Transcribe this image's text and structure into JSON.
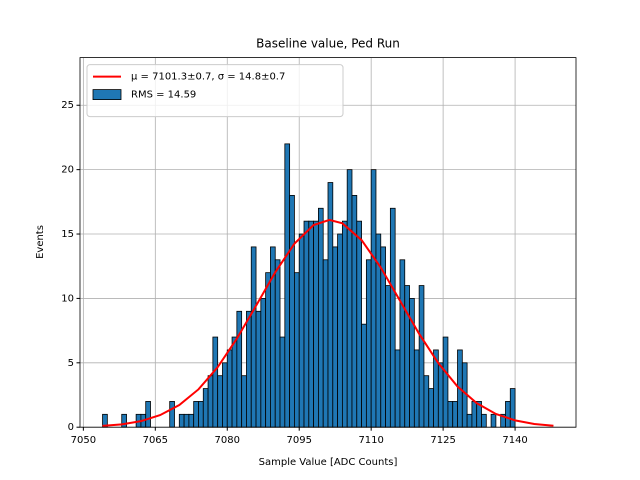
{
  "chart_data": {
    "type": "histogram",
    "title": "Baseline value, Ped Run",
    "xlabel": "Sample Value [ADC Counts]",
    "ylabel": "Events",
    "bins": [
      7054,
      7055,
      7056,
      7057,
      7058,
      7059,
      7060,
      7061,
      7062,
      7063,
      7064,
      7065,
      7066,
      7067,
      7068,
      7069,
      7070,
      7071,
      7072,
      7073,
      7074,
      7075,
      7076,
      7077,
      7078,
      7079,
      7080,
      7081,
      7082,
      7083,
      7084,
      7085,
      7086,
      7087,
      7088,
      7089,
      7090,
      7091,
      7092,
      7093,
      7094,
      7095,
      7096,
      7097,
      7098,
      7099,
      7100,
      7101,
      7102,
      7103,
      7104,
      7105,
      7106,
      7107,
      7108,
      7109,
      7110,
      7111,
      7112,
      7113,
      7114,
      7115,
      7116,
      7117,
      7118,
      7119,
      7120,
      7121,
      7122,
      7123,
      7124,
      7125,
      7126,
      7127,
      7128,
      7129,
      7130,
      7131,
      7132,
      7133,
      7134,
      7135,
      7136,
      7137,
      7138,
      7139,
      7140
    ],
    "series": [
      {
        "name": "μ = 7101.3±0.7, σ = 14.8±0.7",
        "type": "line",
        "color": "#ff0000",
        "x": [
          7054,
          7058,
          7062,
          7066,
          7070,
          7074,
          7078,
          7082,
          7086,
          7090,
          7094,
          7098,
          7101.3,
          7104,
          7108,
          7112,
          7116,
          7120,
          7124,
          7128,
          7132,
          7136,
          7140,
          7144,
          7148
        ],
        "values": [
          0.1,
          0.22,
          0.47,
          0.94,
          1.72,
          2.94,
          4.66,
          6.88,
          9.43,
          12.03,
          14.25,
          15.7,
          16.1,
          15.83,
          14.53,
          12.4,
          9.83,
          7.25,
          4.97,
          3.16,
          1.87,
          1.03,
          0.53,
          0.25,
          0.11
        ]
      },
      {
        "name": "RMS = 14.59",
        "type": "histogram",
        "color": "#1f77b4",
        "values": [
          1,
          0,
          0,
          0,
          1,
          0,
          0,
          1,
          1,
          2,
          0,
          0,
          0,
          0,
          2,
          0,
          1,
          1,
          1,
          2,
          2,
          3,
          4,
          7,
          4,
          5,
          6,
          7,
          9,
          4,
          9,
          14,
          9,
          10,
          12,
          14,
          13,
          7,
          22,
          18,
          12,
          15,
          16,
          16,
          16,
          17,
          13,
          19,
          14,
          15,
          16,
          20,
          18,
          16,
          8,
          13,
          20,
          15,
          14,
          11,
          17,
          6,
          13,
          11,
          10,
          6,
          11,
          4,
          3,
          6,
          5,
          7,
          2,
          2,
          6,
          5,
          1,
          2,
          2,
          1,
          0,
          1,
          0,
          1,
          2,
          3
        ]
      }
    ],
    "xlim": [
      7049.3,
      7152.7
    ],
    "ylim": [
      0,
      28.7
    ],
    "xticks": [
      7050,
      7065,
      7080,
      7095,
      7110,
      7125,
      7140
    ],
    "yticks": [
      0,
      5,
      10,
      15,
      20,
      25
    ],
    "grid": true,
    "legend": "upper-left"
  }
}
